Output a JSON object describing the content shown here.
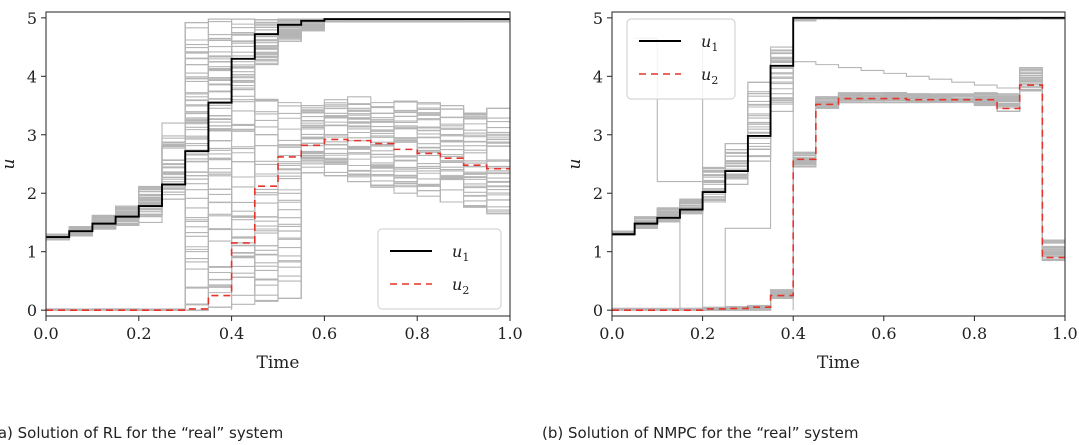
{
  "chart_data": [
    {
      "type": "line",
      "step": true,
      "xlabel": "Time",
      "ylabel": "u",
      "xlim": [
        0.0,
        1.0
      ],
      "ylim": [
        -0.1,
        5.1
      ],
      "xticks": [
        "0.0",
        "0.2",
        "0.4",
        "0.6",
        "0.8",
        "1.0"
      ],
      "yticks": [
        "0",
        "1",
        "2",
        "3",
        "4",
        "5"
      ],
      "grid": false,
      "legend_position": "bottom-right",
      "caption": "(a) Solution of RL for the “real” system",
      "step_x": [
        0.0,
        0.05,
        0.1,
        0.15,
        0.2,
        0.25,
        0.3,
        0.35,
        0.4,
        0.45,
        0.5,
        0.55,
        0.6,
        0.65,
        0.7,
        0.75,
        0.8,
        0.85,
        0.9,
        0.95,
        1.0
      ],
      "series": [
        {
          "name": "u1",
          "label_base": "u",
          "label_sub": "1",
          "color": "#000000",
          "dash": "none",
          "values": [
            1.25,
            1.35,
            1.48,
            1.6,
            1.78,
            2.15,
            2.72,
            3.55,
            4.3,
            4.72,
            4.88,
            4.95,
            4.98,
            4.98,
            4.98,
            4.98,
            4.98,
            4.98,
            4.98,
            4.98
          ]
        },
        {
          "name": "u2",
          "label_base": "u",
          "label_sub": "2",
          "color": "#e5332a",
          "dash": "7,5",
          "values": [
            0.0,
            0.0,
            0.0,
            0.0,
            0.0,
            0.0,
            0.02,
            0.25,
            1.15,
            2.12,
            2.62,
            2.82,
            2.92,
            2.9,
            2.85,
            2.75,
            2.68,
            2.6,
            2.48,
            2.42
          ]
        }
      ],
      "band": {
        "color": "#b5b5b5",
        "runs": 40,
        "lower": [
          1.2,
          1.27,
          1.38,
          1.45,
          1.6,
          1.9,
          2.3,
          2.9,
          3.6,
          4.2,
          4.6,
          4.78,
          4.93,
          4.93,
          4.93,
          4.93,
          4.93,
          4.93,
          4.93,
          4.93
        ],
        "upper": [
          1.3,
          1.43,
          1.62,
          1.78,
          2.12,
          2.98,
          4.92,
          4.98,
          4.98,
          4.98,
          4.98,
          4.98,
          4.98,
          4.98,
          4.98,
          4.98,
          4.98,
          4.98,
          4.98,
          4.98
        ]
      },
      "band2": {
        "color": "#b5b5b5",
        "runs": 40,
        "lower": [
          0.0,
          0.0,
          0.0,
          0.0,
          0.0,
          0.0,
          0.0,
          0.05,
          0.1,
          0.15,
          0.2,
          2.35,
          2.3,
          2.2,
          2.1,
          2.0,
          1.95,
          1.85,
          1.75,
          1.65
        ],
        "upper": [
          0.02,
          0.02,
          0.02,
          0.02,
          0.02,
          0.02,
          4.2,
          3.95,
          3.8,
          3.65,
          3.55,
          3.5,
          3.6,
          3.65,
          3.55,
          3.6,
          3.55,
          3.5,
          3.45,
          3.45
        ]
      },
      "outliers": [
        {
          "x": [
            0.2,
            0.25,
            0.3
          ],
          "y": [
            1.5,
            3.2,
            0.0
          ]
        },
        {
          "x": [
            0.3,
            0.35,
            0.4
          ],
          "y": [
            0.0,
            2.6,
            0.0
          ]
        },
        {
          "x": [
            0.35,
            0.4,
            0.5,
            0.55,
            0.6
          ],
          "y": [
            0.3,
            1.1,
            2.4,
            3.1,
            2.6
          ]
        }
      ]
    },
    {
      "type": "line",
      "step": true,
      "xlabel": "Time",
      "ylabel": "u",
      "xlim": [
        0.0,
        1.0
      ],
      "ylim": [
        -0.1,
        5.1
      ],
      "xticks": [
        "0.0",
        "0.2",
        "0.4",
        "0.6",
        "0.8",
        "1.0"
      ],
      "yticks": [
        "0",
        "1",
        "2",
        "3",
        "4",
        "5"
      ],
      "grid": false,
      "legend_position": "top-left",
      "caption": "(b) Solution of NMPC for the “real” system",
      "step_x": [
        0.0,
        0.05,
        0.1,
        0.15,
        0.2,
        0.25,
        0.3,
        0.35,
        0.4,
        0.45,
        0.5,
        0.55,
        0.6,
        0.65,
        0.7,
        0.75,
        0.8,
        0.85,
        0.9,
        0.95,
        1.0
      ],
      "series": [
        {
          "name": "u1",
          "label_base": "u",
          "label_sub": "1",
          "color": "#000000",
          "dash": "none",
          "values": [
            1.3,
            1.48,
            1.58,
            1.72,
            2.02,
            2.38,
            2.98,
            4.18,
            5.0,
            5.0,
            5.0,
            5.0,
            5.0,
            5.0,
            5.0,
            5.0,
            5.0,
            5.0,
            5.0,
            5.0
          ]
        },
        {
          "name": "u2",
          "label_base": "u",
          "label_sub": "2",
          "color": "#e5332a",
          "dash": "7,5",
          "values": [
            0.0,
            0.0,
            0.0,
            0.0,
            0.02,
            0.03,
            0.05,
            0.25,
            2.58,
            3.52,
            3.62,
            3.62,
            3.62,
            3.6,
            3.6,
            3.6,
            3.6,
            3.45,
            3.85,
            0.9
          ]
        }
      ],
      "band": {
        "color": "#b5b5b5",
        "runs": 30,
        "lower": [
          1.28,
          1.4,
          1.5,
          1.65,
          1.85,
          2.15,
          2.55,
          3.4,
          4.95,
          4.98,
          4.98,
          4.98,
          4.98,
          4.98,
          4.98,
          4.98,
          4.98,
          4.98,
          4.98,
          4.98
        ],
        "upper": [
          1.35,
          1.6,
          1.75,
          1.9,
          2.45,
          2.85,
          3.9,
          4.5,
          5.0,
          5.0,
          5.0,
          5.0,
          5.0,
          5.0,
          5.0,
          5.0,
          5.0,
          5.0,
          5.0,
          5.0
        ]
      },
      "band2": {
        "color": "#b5b5b5",
        "runs": 30,
        "lower": [
          0.0,
          0.0,
          0.0,
          0.0,
          0.0,
          0.0,
          0.0,
          0.2,
          2.45,
          3.45,
          3.55,
          3.55,
          3.55,
          3.55,
          3.55,
          3.55,
          3.5,
          3.4,
          3.75,
          0.85
        ],
        "upper": [
          0.03,
          0.03,
          0.03,
          0.03,
          0.05,
          0.06,
          0.08,
          0.35,
          2.7,
          3.65,
          3.72,
          3.72,
          3.72,
          3.7,
          3.7,
          3.7,
          3.72,
          3.7,
          4.15,
          1.2
        ]
      },
      "outliers": [
        {
          "x": [
            0.05,
            0.1,
            0.2
          ],
          "y": [
            4.65,
            2.2,
            4.5
          ]
        },
        {
          "x": [
            0.1,
            0.15,
            0.2,
            0.25,
            0.3,
            0.35,
            0.4
          ],
          "y": [
            0.0,
            1.75,
            0.0,
            1.4,
            1.4,
            4.45,
            0.0
          ]
        },
        {
          "x": [
            0.4,
            0.45,
            0.5,
            0.55,
            0.6,
            0.65,
            0.7,
            0.75,
            0.8,
            0.85,
            0.9,
            0.95
          ],
          "y": [
            4.25,
            4.2,
            4.15,
            4.1,
            4.05,
            4.0,
            3.95,
            3.9,
            3.85,
            3.8,
            3.75,
            1.1
          ]
        }
      ]
    }
  ]
}
